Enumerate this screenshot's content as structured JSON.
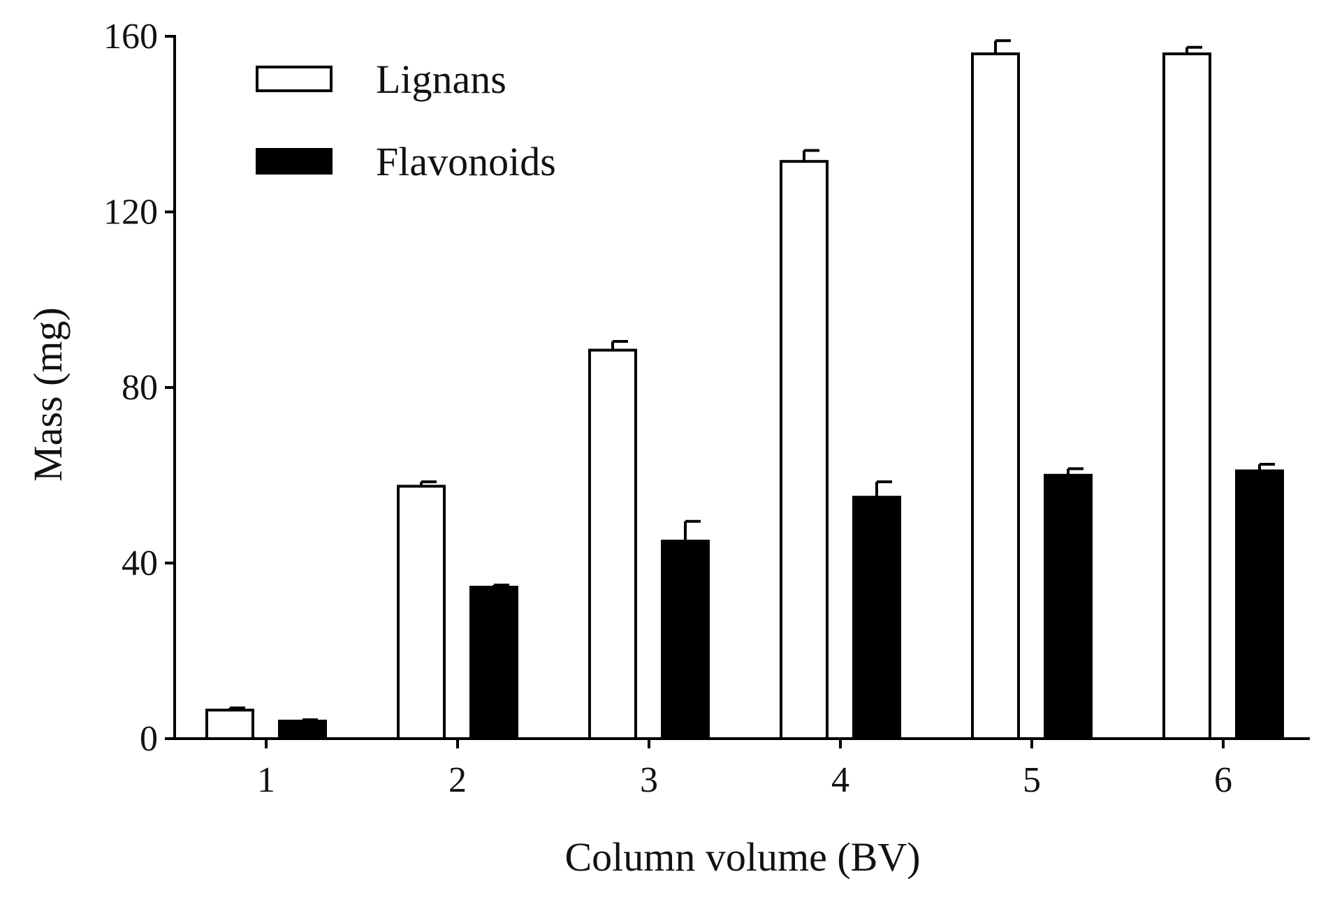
{
  "chart_data": {
    "type": "bar",
    "title": "",
    "xlabel": "Column volume (BV)",
    "ylabel": "Mass (mg)",
    "categories": [
      "1",
      "2",
      "3",
      "4",
      "5",
      "6"
    ],
    "ylim": [
      0,
      160
    ],
    "yticks": [
      "0",
      "40",
      "80",
      "120",
      "160"
    ],
    "grid": false,
    "legend_position": "top-left",
    "series": [
      {
        "name": "Lignans",
        "fill": "#ffffff",
        "stroke": "#000000",
        "values": [
          6.5,
          57.5,
          88.5,
          131.5,
          156,
          156
        ],
        "errors": [
          0.5,
          1.0,
          2.0,
          2.5,
          3.0,
          1.5
        ]
      },
      {
        "name": "Flavonoids",
        "fill": "#000000",
        "stroke": "#000000",
        "values": [
          4,
          34.5,
          45,
          55,
          60,
          61
        ],
        "errors": [
          0.3,
          0.5,
          4.5,
          3.5,
          1.5,
          1.5
        ]
      }
    ]
  }
}
